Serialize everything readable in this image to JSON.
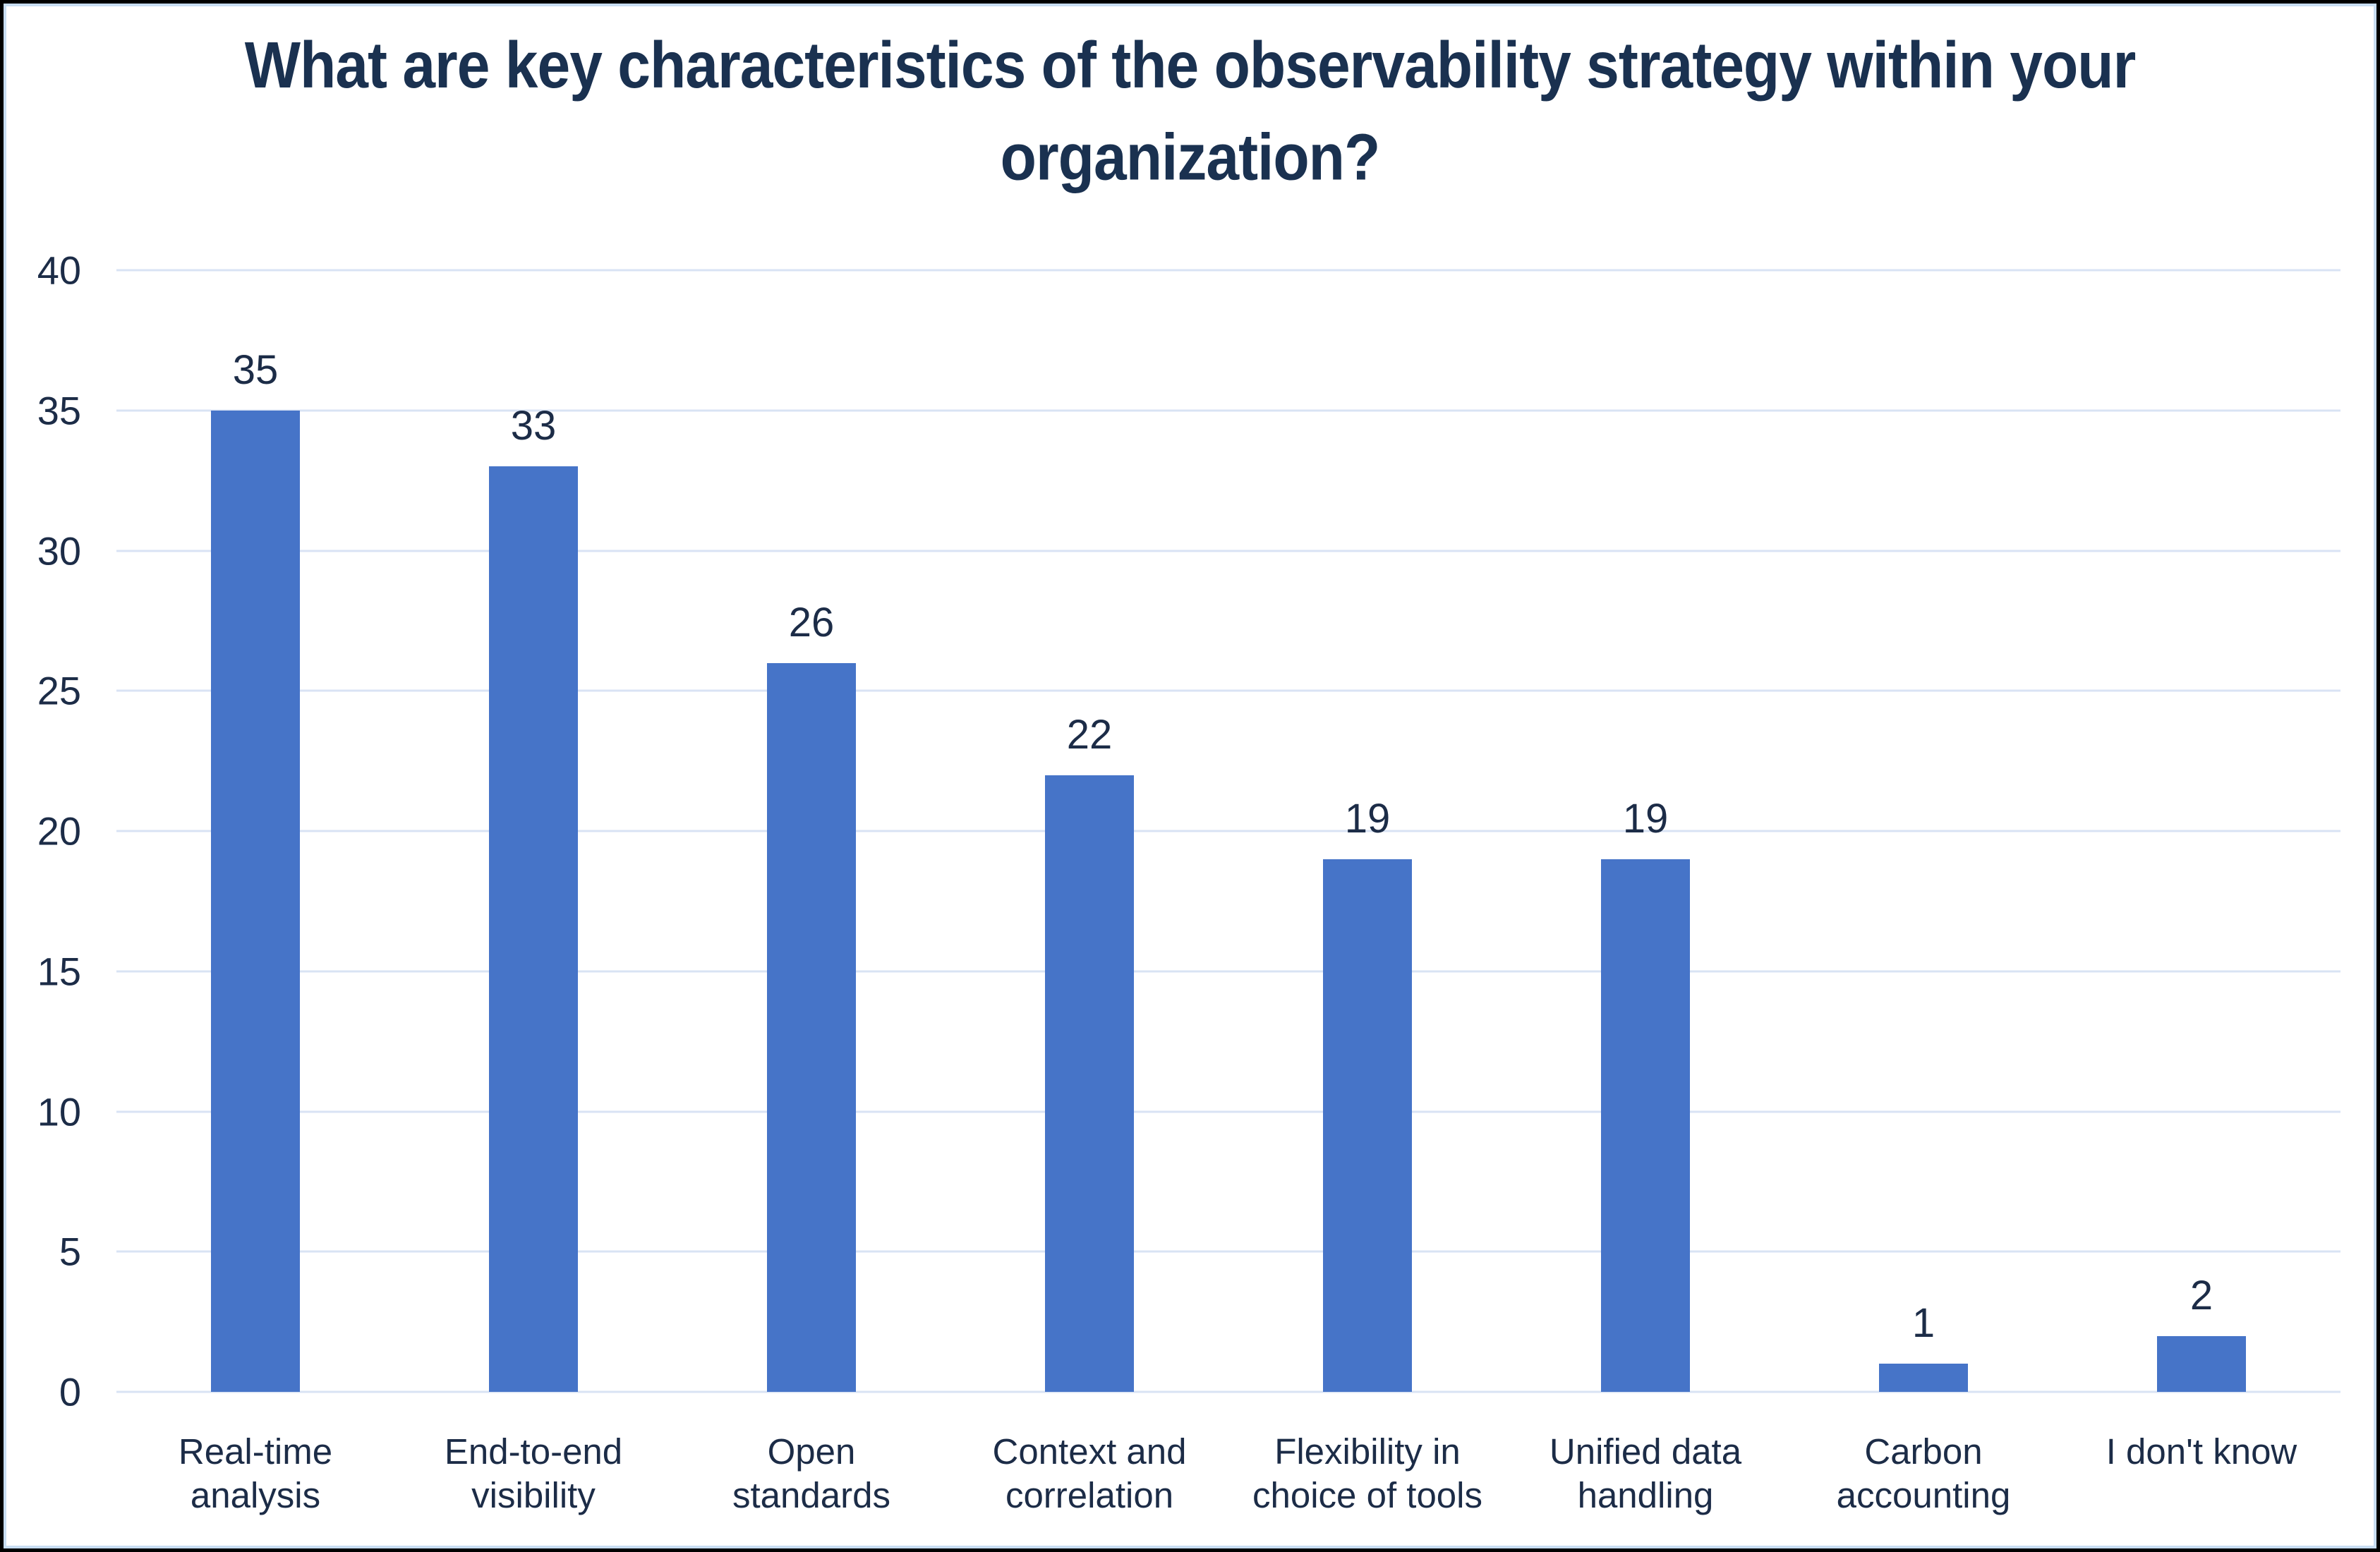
{
  "frame": {
    "outer_border_color": "#000000",
    "inner_border_color": "#C8DDF2",
    "background_color": "#FFFFFF"
  },
  "chart_data": {
    "type": "bar",
    "title": "What are key characteristics of the observability strategy within your organization?",
    "categories": [
      "Real-time analysis",
      "End-to-end visibility",
      "Open standards",
      "Context and correlation",
      "Flexibility in choice of tools",
      "Unified data handling",
      "Carbon accounting",
      "I don't know"
    ],
    "category_lines": [
      [
        "Real-time",
        "analysis"
      ],
      [
        "End-to-end",
        "visibility"
      ],
      [
        "Open",
        "standards"
      ],
      [
        "Context and",
        "correlation"
      ],
      [
        "Flexibility in",
        "choice of tools"
      ],
      [
        "Unified data",
        "handling"
      ],
      [
        "Carbon",
        "accounting"
      ],
      [
        "I don't know"
      ]
    ],
    "values": [
      35,
      33,
      26,
      22,
      19,
      19,
      1,
      2
    ],
    "value_labels": [
      "35",
      "33",
      "26",
      "22",
      "19",
      "19",
      "1",
      "2"
    ],
    "yticks": [
      0,
      5,
      10,
      15,
      20,
      25,
      30,
      35,
      40
    ],
    "ylim": [
      0,
      40
    ],
    "xlabel": "",
    "ylabel": "",
    "grid": true,
    "legend": false,
    "colors": {
      "bar": "#4674C8",
      "gridline": "#D9E3F4",
      "axis_line": "#D9E3F4",
      "title_text": "#1A3150",
      "tick_text": "#1C2C47",
      "value_label_text": "#1C2C47",
      "category_text": "#1C2C47"
    }
  }
}
